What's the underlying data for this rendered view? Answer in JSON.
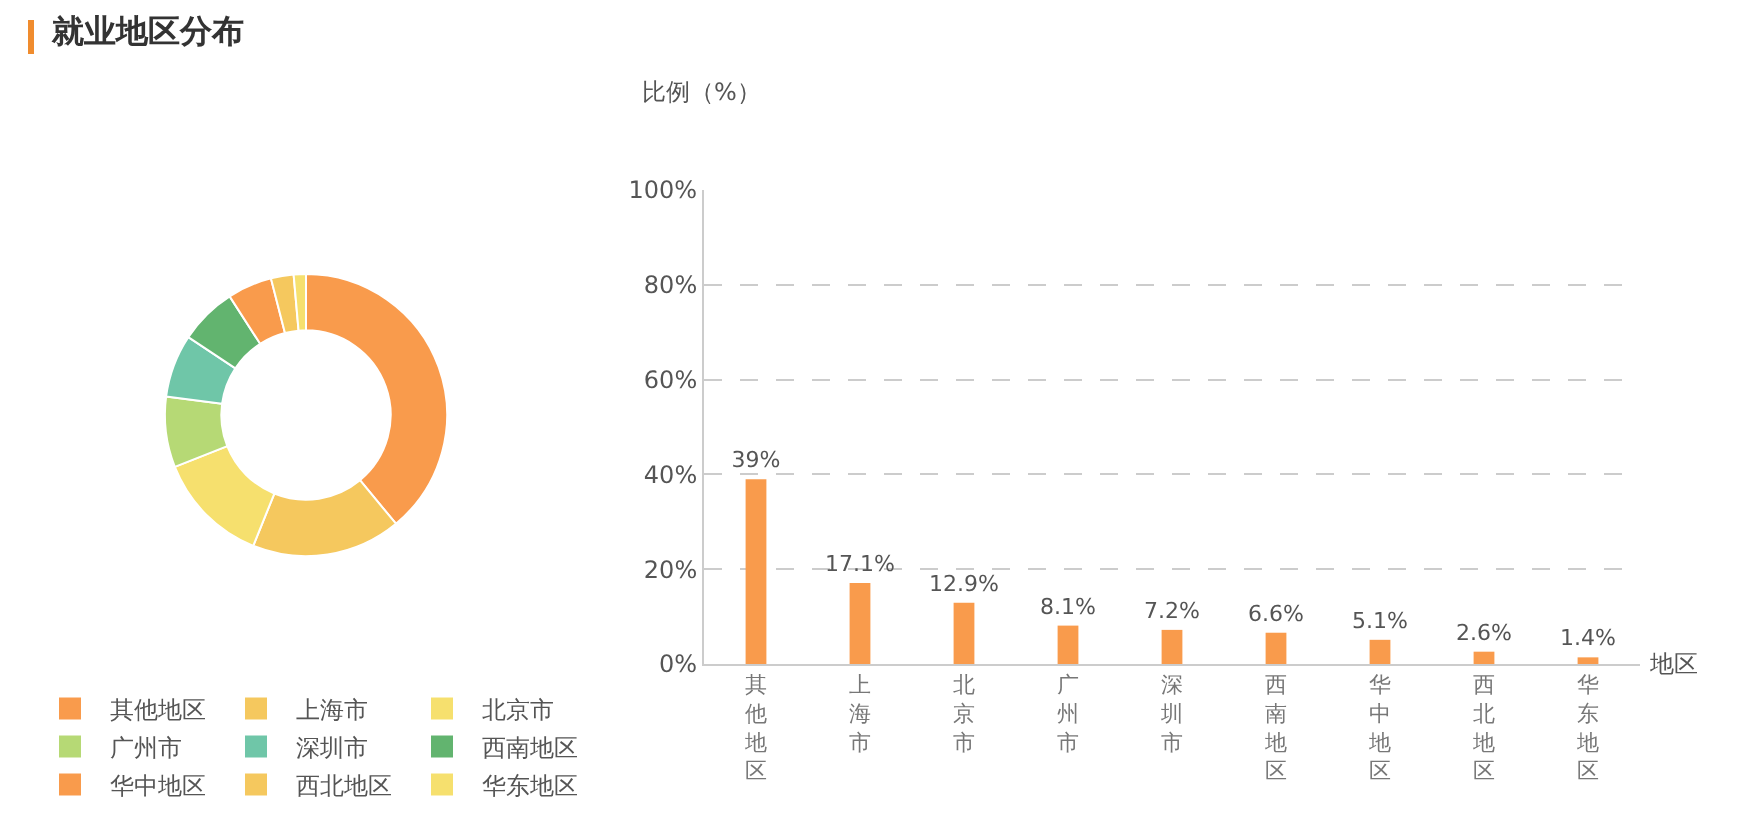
{
  "chart_data": [
    {
      "type": "donut",
      "title": "就业地区分布",
      "categories": [
        "其他地区",
        "上海市",
        "北京市",
        "广州市",
        "深圳市",
        "西南地区",
        "华中地区",
        "西北地区",
        "华东地区"
      ],
      "values": [
        39,
        17.1,
        12.9,
        8.1,
        7.2,
        6.6,
        5.1,
        2.6,
        1.4
      ],
      "colors": [
        "#f99b4c",
        "#f5c85e",
        "#f6e06e",
        "#b6d975",
        "#6fc6a8",
        "#62b46f",
        "#f99b4c",
        "#f5c85e",
        "#f6e06e"
      ],
      "legend": "bottom left"
    },
    {
      "type": "bar",
      "ylabel": "比例（%）",
      "xlabel": "地区",
      "categories": [
        "其他地区",
        "上海市",
        "北京市",
        "广州市",
        "深圳市",
        "西南地区",
        "华中地区",
        "西北地区",
        "华东地区"
      ],
      "values": [
        39,
        17.1,
        12.9,
        8.1,
        7.2,
        6.6,
        5.1,
        2.6,
        1.4
      ],
      "value_labels": [
        "39%",
        "17.1%",
        "12.9%",
        "8.1%",
        "7.2%",
        "6.6%",
        "5.1%",
        "2.6%",
        "1.4%"
      ],
      "color": "#f99b4c",
      "ylim": [
        0,
        100
      ],
      "yticks": [
        {
          "value": 0,
          "label": "0%"
        },
        {
          "value": 20,
          "label": "20%"
        },
        {
          "value": 40,
          "label": "40%"
        },
        {
          "value": 60,
          "label": "60%"
        },
        {
          "value": 80,
          "label": "80%"
        },
        {
          "value": 100,
          "label": "100%"
        }
      ],
      "grid": "y",
      "line_style": "dashed"
    }
  ]
}
